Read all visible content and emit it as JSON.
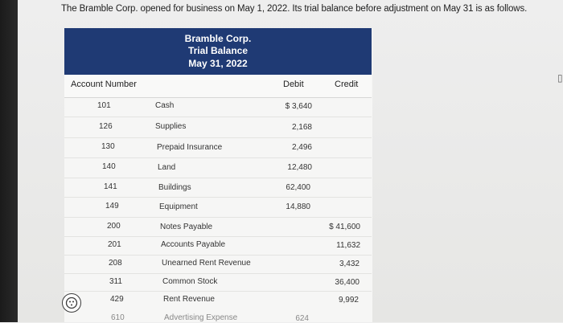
{
  "intro_text": "The Bramble Corp. opened for business on May 1, 2022. Its trial balance before adjustment on May 31 is as follows.",
  "header": {
    "company": "Bramble Corp.",
    "title": "Trial Balance",
    "date": "May 31, 2022"
  },
  "columns": {
    "account_number": "Account Number",
    "debit": "Debit",
    "credit": "Credit"
  },
  "rows": [
    {
      "number": "101",
      "account": "Cash",
      "debit": "$ 3,640",
      "credit": ""
    },
    {
      "number": "126",
      "account": "Supplies",
      "debit": "2,168",
      "credit": ""
    },
    {
      "number": "130",
      "account": "Prepaid Insurance",
      "debit": "2,496",
      "credit": ""
    },
    {
      "number": "140",
      "account": "Land",
      "debit": "12,480",
      "credit": ""
    },
    {
      "number": "141",
      "account": "Buildings",
      "debit": "62,400",
      "credit": ""
    },
    {
      "number": "149",
      "account": "Equipment",
      "debit": "14,880",
      "credit": ""
    },
    {
      "number": "200",
      "account": "Notes Payable",
      "debit": "",
      "credit": "$ 41,600"
    },
    {
      "number": "201",
      "account": "Accounts Payable",
      "debit": "",
      "credit": "11,632"
    },
    {
      "number": "208",
      "account": "Unearned Rent Revenue",
      "debit": "",
      "credit": "3,432"
    },
    {
      "number": "311",
      "account": "Common Stock",
      "debit": "",
      "credit": "36,400"
    },
    {
      "number": "429",
      "account": "Rent Revenue",
      "debit": "",
      "credit": "9,992"
    },
    {
      "number": "610",
      "account": "Advertising Expense",
      "debit": "624",
      "credit": ""
    }
  ],
  "help_icon": "help-circle-icon",
  "colors": {
    "header_bg": "#1f3a74",
    "header_text": "#ffffff",
    "page_bg": "#eeeeee"
  }
}
